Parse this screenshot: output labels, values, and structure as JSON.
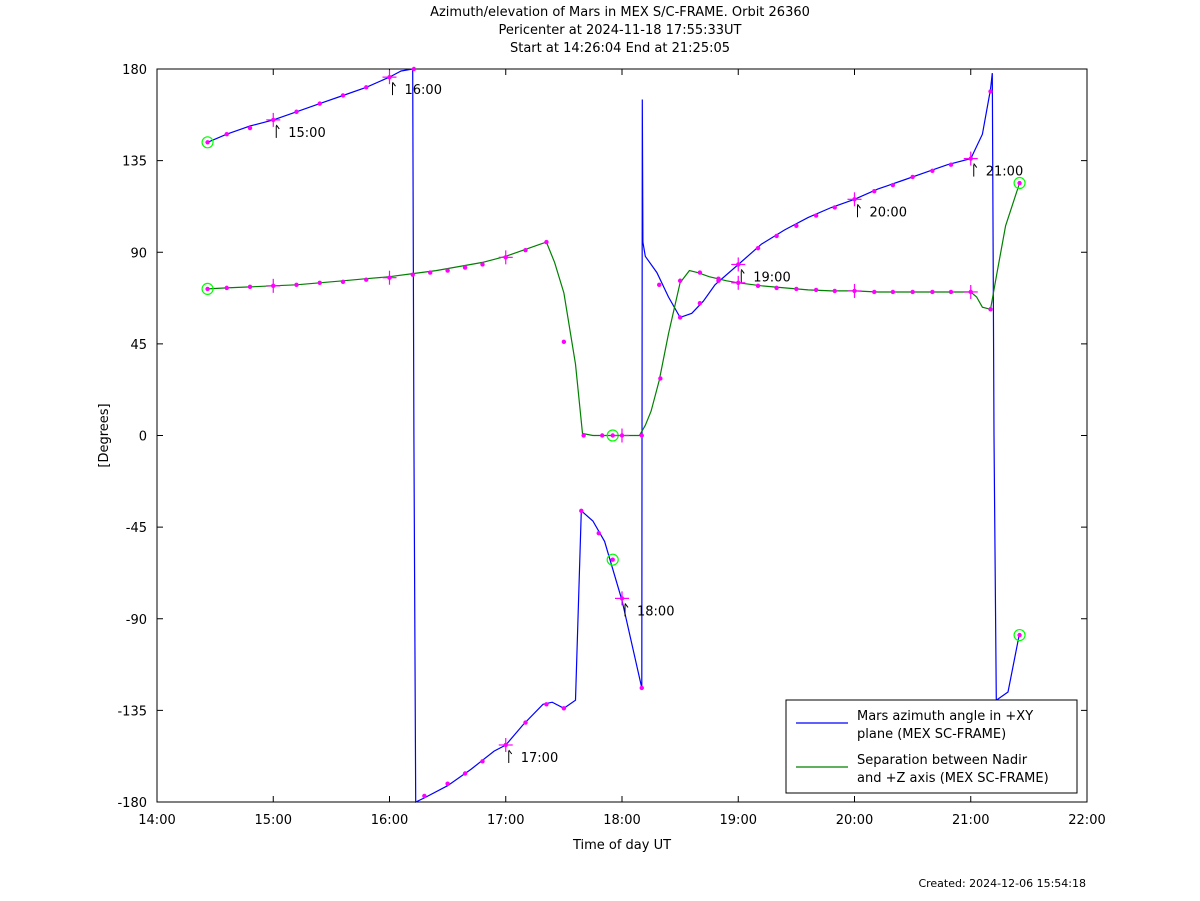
{
  "header": {
    "title": "Azimuth/elevation of Mars in MEX S/C-FRAME.  Orbit 26360",
    "pericenter": "Pericenter at 2024-11-18 17:55:33UT",
    "span": "Start at 14:26:04 End at 21:25:05"
  },
  "footer": {
    "created": "Created: 2024-12-06 15:54:18"
  },
  "chart_data": {
    "type": "line",
    "xlabel": "Time of day UT",
    "ylabel": "[Degrees]",
    "xlim": [
      14.0,
      22.0
    ],
    "ylim": [
      -180,
      180
    ],
    "x_ticks": [
      14,
      15,
      16,
      17,
      18,
      19,
      20,
      21,
      22
    ],
    "x_tick_labels": [
      "14:00",
      "15:00",
      "16:00",
      "17:00",
      "18:00",
      "19:00",
      "20:00",
      "21:00",
      "22:00"
    ],
    "y_ticks": [
      180,
      135,
      90,
      45,
      0,
      -45,
      -90,
      -135,
      -180
    ],
    "y_tick_labels": [
      "180",
      "135",
      "90",
      "45",
      "0",
      "-45",
      "-90",
      "-135",
      "-180"
    ],
    "grid": false,
    "legend_position": "bottom-right",
    "series": [
      {
        "name": "Mars azimuth angle in +XY plane (MEX SC-FRAME)",
        "legend_lines": [
          "Mars azimuth angle in +XY",
          "plane (MEX SC-FRAME)"
        ],
        "color": "#0000ff",
        "x": [
          14.435,
          14.6,
          14.8,
          15.0,
          15.2,
          15.4,
          15.6,
          15.8,
          16.0,
          16.1,
          16.2,
          16.21,
          16.225,
          16.3,
          16.5,
          16.7,
          16.9,
          17.0,
          17.15,
          17.32,
          17.4,
          17.5,
          17.6,
          17.65,
          17.75,
          17.85,
          18.0,
          18.17,
          18.175,
          18.18,
          18.2,
          18.3,
          18.4,
          18.5,
          18.6,
          18.7,
          18.8,
          19.0,
          19.2,
          19.4,
          19.6,
          19.8,
          20.0,
          20.2,
          20.4,
          20.6,
          20.8,
          21.0,
          21.1,
          21.17,
          21.185,
          21.2,
          21.22,
          21.32,
          21.42
        ],
        "y": [
          144,
          148,
          152,
          155,
          159,
          163,
          167,
          171,
          176,
          179,
          180,
          0,
          -180,
          -178,
          -172,
          -164,
          -155,
          -152,
          -142,
          -132,
          -131,
          -134,
          -130,
          -37,
          -42,
          -52,
          -81,
          -124,
          165,
          95,
          88,
          80,
          68,
          58,
          60,
          66,
          74,
          84,
          94,
          101,
          107,
          112,
          116,
          121,
          125,
          129,
          133,
          136,
          148,
          170,
          178,
          0,
          -130,
          -126,
          -97
        ],
        "markers": [
          {
            "x": 14.435,
            "y": 144,
            "kind": "start"
          },
          {
            "x": 14.6,
            "y": 148
          },
          {
            "x": 14.8,
            "y": 151
          },
          {
            "x": 15.0,
            "y": 155,
            "kind": "hour",
            "label": "15:00"
          },
          {
            "x": 15.2,
            "y": 159
          },
          {
            "x": 15.4,
            "y": 163
          },
          {
            "x": 15.6,
            "y": 167
          },
          {
            "x": 15.8,
            "y": 171
          },
          {
            "x": 16.0,
            "y": 176,
            "kind": "hour",
            "label": "16:00"
          },
          {
            "x": 16.21,
            "y": 180
          },
          {
            "x": 16.3,
            "y": -177
          },
          {
            "x": 16.5,
            "y": -171
          },
          {
            "x": 16.65,
            "y": -166
          },
          {
            "x": 16.8,
            "y": -160
          },
          {
            "x": 17.0,
            "y": -152,
            "kind": "hour",
            "label": "17:00"
          },
          {
            "x": 17.17,
            "y": -141
          },
          {
            "x": 17.35,
            "y": -132
          },
          {
            "x": 17.5,
            "y": -134
          },
          {
            "x": 17.65,
            "y": -37
          },
          {
            "x": 17.8,
            "y": -48
          },
          {
            "x": 17.92,
            "y": -61,
            "kind": "pericenter"
          },
          {
            "x": 18.0,
            "y": -80,
            "kind": "hour",
            "label": "18:00"
          },
          {
            "x": 18.17,
            "y": -124
          },
          {
            "x": 18.32,
            "y": 74
          },
          {
            "x": 18.5,
            "y": 58
          },
          {
            "x": 18.67,
            "y": 65
          },
          {
            "x": 18.83,
            "y": 76
          },
          {
            "x": 19.0,
            "y": 84,
            "kind": "hour",
            "label": "19:00"
          },
          {
            "x": 19.17,
            "y": 92
          },
          {
            "x": 19.33,
            "y": 98
          },
          {
            "x": 19.5,
            "y": 103
          },
          {
            "x": 19.67,
            "y": 108
          },
          {
            "x": 19.83,
            "y": 112
          },
          {
            "x": 20.0,
            "y": 116,
            "kind": "hour",
            "label": "20:00"
          },
          {
            "x": 20.17,
            "y": 120
          },
          {
            "x": 20.33,
            "y": 123
          },
          {
            "x": 20.5,
            "y": 127
          },
          {
            "x": 20.67,
            "y": 130
          },
          {
            "x": 20.83,
            "y": 133
          },
          {
            "x": 21.0,
            "y": 136,
            "kind": "hour",
            "label": "21:00"
          },
          {
            "x": 21.17,
            "y": 169
          },
          {
            "x": 21.42,
            "y": -98,
            "kind": "end"
          }
        ]
      },
      {
        "name": "Separation between Nadir and +Z axis (MEX SC-FRAME)",
        "legend_lines": [
          "Separation between Nadir",
          "and +Z axis (MEX SC-FRAME)"
        ],
        "color": "#008000",
        "x": [
          14.435,
          14.6,
          14.8,
          15.0,
          15.2,
          15.4,
          15.6,
          15.8,
          16.0,
          16.2,
          16.4,
          16.6,
          16.8,
          17.0,
          17.15,
          17.3,
          17.35,
          17.42,
          17.5,
          17.6,
          17.66,
          17.75,
          17.9,
          18.0,
          18.15,
          18.2,
          18.25,
          18.32,
          18.4,
          18.5,
          18.58,
          18.65,
          18.75,
          18.9,
          19.0,
          19.2,
          19.4,
          19.6,
          19.8,
          20.0,
          20.2,
          20.4,
          20.6,
          20.8,
          21.0,
          21.05,
          21.1,
          21.17,
          21.22,
          21.3,
          21.42
        ],
        "y": [
          72,
          72.5,
          73,
          73.5,
          74,
          75,
          76,
          77,
          78,
          79.5,
          81,
          83,
          85,
          88,
          91,
          94,
          95,
          85,
          70,
          35,
          1,
          0,
          0,
          0,
          0,
          5,
          12,
          27,
          50,
          75,
          81,
          80,
          78,
          76,
          75,
          73.5,
          72.5,
          71.5,
          71,
          71,
          70.5,
          70.5,
          70.5,
          70.5,
          70.5,
          68,
          63,
          62,
          78,
          103,
          124
        ],
        "markers": [
          {
            "x": 14.435,
            "y": 72,
            "kind": "start"
          },
          {
            "x": 14.6,
            "y": 72.5
          },
          {
            "x": 14.8,
            "y": 73
          },
          {
            "x": 15.0,
            "y": 73.5,
            "kind": "hour"
          },
          {
            "x": 15.2,
            "y": 74
          },
          {
            "x": 15.4,
            "y": 75
          },
          {
            "x": 15.6,
            "y": 75.5
          },
          {
            "x": 15.8,
            "y": 76.5
          },
          {
            "x": 16.0,
            "y": 77.5,
            "kind": "hour"
          },
          {
            "x": 16.2,
            "y": 79
          },
          {
            "x": 16.35,
            "y": 80
          },
          {
            "x": 16.5,
            "y": 81
          },
          {
            "x": 16.65,
            "y": 82.5
          },
          {
            "x": 16.8,
            "y": 84
          },
          {
            "x": 17.0,
            "y": 87.5,
            "kind": "hour"
          },
          {
            "x": 17.17,
            "y": 91
          },
          {
            "x": 17.35,
            "y": 95
          },
          {
            "x": 17.5,
            "y": 46
          },
          {
            "x": 17.67,
            "y": 0
          },
          {
            "x": 17.83,
            "y": 0
          },
          {
            "x": 17.92,
            "y": 0,
            "kind": "pericenter"
          },
          {
            "x": 18.0,
            "y": 0,
            "kind": "hour"
          },
          {
            "x": 18.17,
            "y": 0
          },
          {
            "x": 18.33,
            "y": 28
          },
          {
            "x": 18.5,
            "y": 76
          },
          {
            "x": 18.67,
            "y": 80
          },
          {
            "x": 18.83,
            "y": 77
          },
          {
            "x": 19.0,
            "y": 75,
            "kind": "hour"
          },
          {
            "x": 19.17,
            "y": 73.5
          },
          {
            "x": 19.33,
            "y": 72.5
          },
          {
            "x": 19.5,
            "y": 72
          },
          {
            "x": 19.67,
            "y": 71.5
          },
          {
            "x": 19.83,
            "y": 71
          },
          {
            "x": 20.0,
            "y": 71,
            "kind": "hour"
          },
          {
            "x": 20.17,
            "y": 70.5
          },
          {
            "x": 20.33,
            "y": 70.5
          },
          {
            "x": 20.5,
            "y": 70.5
          },
          {
            "x": 20.67,
            "y": 70.5
          },
          {
            "x": 20.83,
            "y": 70.5
          },
          {
            "x": 21.0,
            "y": 70.5,
            "kind": "hour"
          },
          {
            "x": 21.17,
            "y": 62
          },
          {
            "x": 21.42,
            "y": 124,
            "kind": "end"
          }
        ]
      }
    ],
    "colors": {
      "marker": "#ff00ff",
      "endpoint_circle": "#00ff00",
      "axes": "#000000"
    }
  }
}
